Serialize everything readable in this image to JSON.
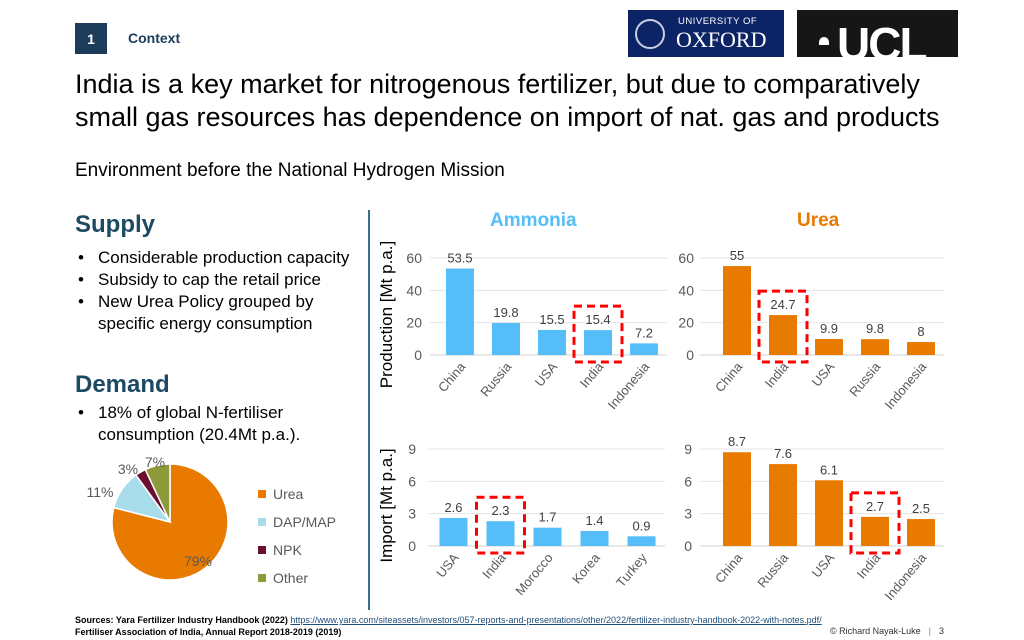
{
  "header": {
    "section_number": "1",
    "section_label": "Context",
    "logos": {
      "oxford_line1": "UNIVERSITY OF",
      "oxford_line2": "OXFORD",
      "ucl": "UCL"
    }
  },
  "title": "India is a key market for nitrogenous fertilizer, but due to comparatively small gas resources has dependence on import of nat. gas and products",
  "subtitle": "Environment before the National Hydrogen Mission",
  "supply": {
    "heading": "Supply",
    "bullets": [
      "Considerable production capacity",
      "Subsidy to cap the retail price",
      "New Urea Policy grouped by specific energy consumption"
    ]
  },
  "demand": {
    "heading": "Demand",
    "bullets": [
      "18% of global N-fertiliser consumption (20.4Mt p.a.)."
    ]
  },
  "column_titles": {
    "ammonia": "Ammonia",
    "urea": "Urea"
  },
  "colors": {
    "ammonia": "#55bdf7",
    "urea": "#e87a00",
    "highlight": "#ff0000"
  },
  "chart_data": [
    {
      "id": "ammonia-production",
      "type": "bar",
      "ylabel": "Production [Mt p.a.]",
      "ylim": [
        0,
        60
      ],
      "yticks": [
        0,
        20,
        40,
        60
      ],
      "categories": [
        "China",
        "Russia",
        "USA",
        "India",
        "Indonesia"
      ],
      "values": [
        53.5,
        19.8,
        15.5,
        15.4,
        7.2
      ],
      "labels": [
        "53.5",
        "19.8",
        "15.5",
        "15.4",
        "7.2"
      ],
      "highlight": "India",
      "color": "#55bdf7",
      "grid": true
    },
    {
      "id": "urea-production",
      "type": "bar",
      "ylabel": "",
      "ylim": [
        0,
        60
      ],
      "yticks": [
        0,
        20,
        40,
        60
      ],
      "categories": [
        "China",
        "India",
        "USA",
        "Russia",
        "Indonesia"
      ],
      "values": [
        55,
        24.7,
        9.9,
        9.8,
        8
      ],
      "labels": [
        "55",
        "24.7",
        "9.9",
        "9.8",
        "8"
      ],
      "highlight": "India",
      "color": "#e87a00",
      "grid": true
    },
    {
      "id": "ammonia-import",
      "type": "bar",
      "ylabel": "Import [Mt p.a.]",
      "ylim": [
        0,
        9
      ],
      "yticks": [
        0,
        3,
        6,
        9
      ],
      "categories": [
        "USA",
        "India",
        "Morocco",
        "Korea",
        "Turkey"
      ],
      "values": [
        2.6,
        2.3,
        1.7,
        1.4,
        0.9
      ],
      "labels": [
        "2.6",
        "2.3",
        "1.7",
        "1.4",
        "0.9"
      ],
      "highlight": "India",
      "color": "#55bdf7",
      "grid": true
    },
    {
      "id": "urea-import",
      "type": "bar",
      "ylabel": "",
      "ylim": [
        0,
        9
      ],
      "yticks": [
        0,
        3,
        6,
        9
      ],
      "categories": [
        "China",
        "Russia",
        "USA",
        "India",
        "Indonesia"
      ],
      "values": [
        8.7,
        7.6,
        6.1,
        2.7,
        2.5
      ],
      "labels": [
        "8.7",
        "7.6",
        "6.1",
        "2.7",
        "2.5"
      ],
      "highlight": "India",
      "color": "#e87a00",
      "grid": true
    },
    {
      "id": "demand-pie",
      "type": "pie",
      "legend": "right",
      "categories": [
        "Urea",
        "DAP/MAP",
        "NPK",
        "Other"
      ],
      "values": [
        79,
        11,
        3,
        7
      ],
      "labels": [
        "79%",
        "11%",
        "3%",
        "7%"
      ],
      "colors": [
        "#e87a00",
        "#a7dcea",
        "#6b0f2f",
        "#8c9a3a"
      ]
    }
  ],
  "footer": {
    "sources_prefix": "Sources: Yara Fertilizer Industry Handbook (2022) ",
    "sources_link": "https://www.yara.com/siteassets/investors/057-reports-and-presentations/other/2022/fertilizer-industry-handbook-2022-with-notes.pdf/",
    "sources_line2": "Fertiliser Association of India, Annual Report 2018-2019 (2019)",
    "copyright": "© Richard Nayak-Luke",
    "page_number": "3"
  }
}
